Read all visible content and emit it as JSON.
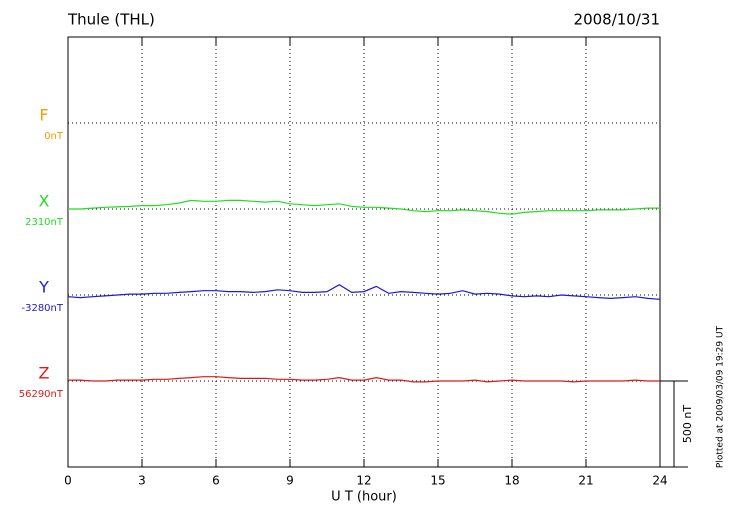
{
  "chart_data": {
    "type": "line",
    "title": "Thule (THL)",
    "date": "2008/10/31",
    "xlabel": "U T (hour)",
    "footnote": "Plotted at 2009/03/09 19:29 UT",
    "xlim": [
      0,
      24
    ],
    "xticks": [
      0,
      3,
      6,
      9,
      12,
      15,
      18,
      21,
      24
    ],
    "ylim": [
      0,
      2500
    ],
    "grid": true,
    "scale_bar": {
      "value": 500,
      "label": "500 nT"
    },
    "x": [
      0,
      0.5,
      1,
      1.5,
      2,
      2.5,
      3,
      3.5,
      4,
      4.5,
      5,
      5.5,
      6,
      6.5,
      7,
      7.5,
      8,
      8.5,
      9,
      9.5,
      10,
      10.5,
      11,
      11.5,
      12,
      12.5,
      13,
      13.5,
      14,
      14.5,
      15,
      15.5,
      16,
      16.5,
      17,
      17.5,
      18,
      18.5,
      19,
      19.5,
      20,
      20.5,
      21,
      21.5,
      22,
      22.5,
      23,
      23.5,
      24
    ],
    "series": [
      {
        "name": "F",
        "color": "#f0a000",
        "baseline": {
          "value": 2000,
          "label": "0nT"
        }
      },
      {
        "name": "X",
        "color": "#22dd22",
        "baseline": {
          "value": 1500,
          "label": "2310nT"
        },
        "values": [
          1500,
          1500,
          1505,
          1510,
          1512,
          1515,
          1520,
          1520,
          1525,
          1535,
          1550,
          1545,
          1545,
          1550,
          1550,
          1545,
          1540,
          1545,
          1530,
          1525,
          1520,
          1525,
          1530,
          1515,
          1510,
          1510,
          1505,
          1500,
          1490,
          1485,
          1490,
          1490,
          1495,
          1490,
          1485,
          1475,
          1470,
          1480,
          1485,
          1490,
          1490,
          1490,
          1490,
          1495,
          1495,
          1495,
          1500,
          1505,
          1505
        ]
      },
      {
        "name": "Y",
        "color": "#1a1adc",
        "baseline": {
          "value": 1000,
          "label": "-3280nT"
        },
        "values": [
          990,
          985,
          990,
          995,
          1000,
          1005,
          1005,
          1010,
          1010,
          1015,
          1020,
          1025,
          1025,
          1020,
          1020,
          1015,
          1020,
          1030,
          1025,
          1015,
          1015,
          1020,
          1060,
          1015,
          1020,
          1050,
          1010,
          1020,
          1015,
          1010,
          1005,
          1010,
          1025,
          1005,
          1010,
          1005,
          995,
          990,
          995,
          990,
          1000,
          995,
          990,
          985,
          980,
          985,
          990,
          980,
          975
        ]
      },
      {
        "name": "Z",
        "color": "#dd1a1a",
        "baseline": {
          "value": 500,
          "label": "56290nT"
        },
        "values": [
          505,
          505,
          500,
          500,
          505,
          505,
          505,
          510,
          510,
          515,
          520,
          525,
          525,
          520,
          515,
          515,
          515,
          510,
          510,
          505,
          505,
          510,
          520,
          505,
          505,
          520,
          505,
          505,
          495,
          495,
          500,
          500,
          500,
          505,
          495,
          500,
          505,
          500,
          500,
          500,
          500,
          495,
          500,
          500,
          500,
          500,
          505,
          500,
          500
        ]
      }
    ]
  }
}
